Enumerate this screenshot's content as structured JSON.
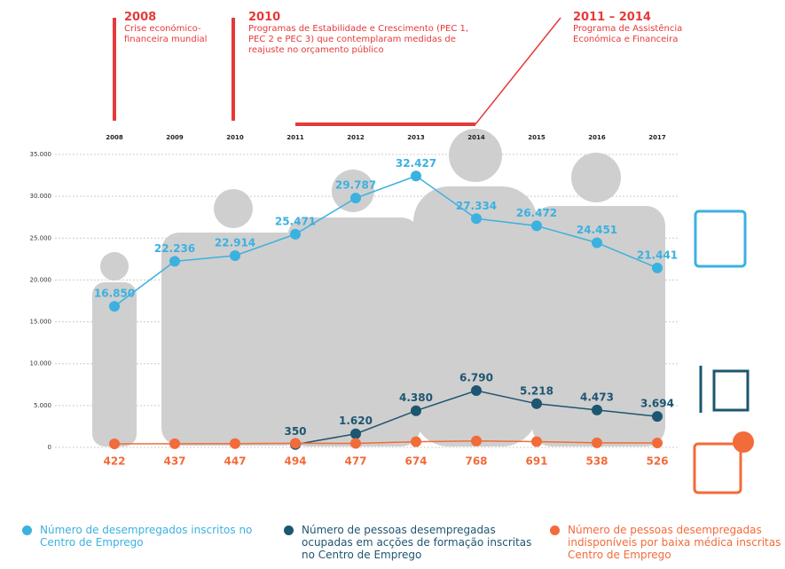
{
  "chart_data": {
    "type": "line",
    "categories": [
      "2008",
      "2009",
      "2010",
      "2011",
      "2012",
      "2013",
      "2014",
      "2015",
      "2016",
      "2017"
    ],
    "ylim": [
      0,
      35000
    ],
    "yticks": [
      0,
      {
        "value": 5000,
        "label": "5.000"
      },
      {
        "value": 10000,
        "label": "10.000"
      },
      {
        "value": 15000,
        "label": "15.000"
      },
      {
        "value": 20000,
        "label": "20.000"
      },
      {
        "value": 25000,
        "label": "25.000"
      },
      {
        "value": 30000,
        "label": "30.000"
      },
      {
        "value": 35000,
        "label": "35.000"
      }
    ],
    "grid": true,
    "series": [
      {
        "name": "Número de desempregados inscritos no Centro de Emprego",
        "color": "#3bb1e0",
        "values": [
          16850,
          22236,
          22914,
          25471,
          29787,
          32427,
          27334,
          26472,
          24451,
          21441
        ],
        "value_labels": [
          "16.850",
          "22.236",
          "22.914",
          "25.471",
          "29.787",
          "32.427",
          "27.334",
          "26.472",
          "24.451",
          "21.441"
        ]
      },
      {
        "name": "Número de pessoas desempregadas ocupadas em acções de formação inscritas no Centro de Emprego",
        "color": "#1d5670",
        "values": [
          null,
          null,
          null,
          350,
          1620,
          4380,
          6790,
          5218,
          4473,
          3694
        ],
        "value_labels": [
          null,
          null,
          null,
          "350",
          "1.620",
          "4.380",
          "6.790",
          "5.218",
          "4.473",
          "3.694"
        ]
      },
      {
        "name": "Número de pessoas desempregadas indisponíveis por baixa médica inscritas no Centro de Emprego",
        "color": "#f26b3a",
        "values": [
          422,
          437,
          447,
          494,
          477,
          674,
          768,
          691,
          538,
          526
        ]
      }
    ],
    "annotations": [
      {
        "label": "2008",
        "text": "Crise económico-financeira mundial"
      },
      {
        "label": "2010",
        "text": "Programas de Estabilidade e Crescimento (PEC 1, PEC 2 e PEC 3) que contemplaram medidas de reajuste no orçamento público"
      },
      {
        "label": "2011 – 2014",
        "text": "Programa de Assistência Económica e Financeira"
      }
    ]
  }
}
